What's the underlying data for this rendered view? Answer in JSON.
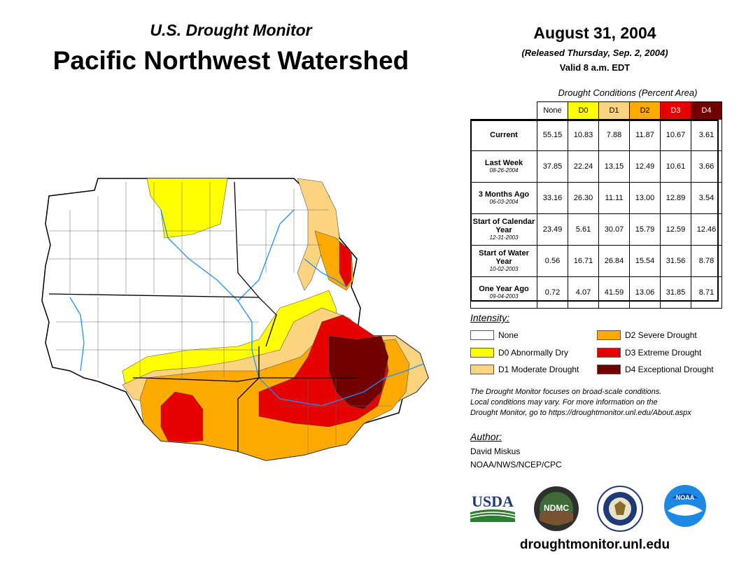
{
  "header": {
    "subtitle": "U.S. Drought Monitor",
    "title": "Pacific Northwest Watershed",
    "date": "August 31, 2004",
    "released": "(Released Thursday, Sep. 2, 2004)",
    "valid": "Valid 8 a.m. EDT"
  },
  "conditions": {
    "title": "Drought Conditions (Percent Area)",
    "columns": [
      {
        "label": "None",
        "color": "#ffffff",
        "text_color": "#000000"
      },
      {
        "label": "D0",
        "color": "#ffff00",
        "text_color": "#000000"
      },
      {
        "label": "D1",
        "color": "#fcd37f",
        "text_color": "#000000"
      },
      {
        "label": "D2",
        "color": "#ffaa00",
        "text_color": "#000000"
      },
      {
        "label": "D3",
        "color": "#e60000",
        "text_color": "#ffffff"
      },
      {
        "label": "D4",
        "color": "#730000",
        "text_color": "#ffffff"
      }
    ],
    "rows": [
      {
        "label": "Current",
        "sublabel": "",
        "values": [
          "55.15",
          "10.83",
          "7.88",
          "11.87",
          "10.67",
          "3.61"
        ]
      },
      {
        "label": "Last Week",
        "sublabel": "08-26-2004",
        "values": [
          "37.85",
          "22.24",
          "13.15",
          "12.49",
          "10.61",
          "3.66"
        ]
      },
      {
        "label": "3 Months Ago",
        "sublabel": "06-03-2004",
        "values": [
          "33.16",
          "26.30",
          "11.11",
          "13.00",
          "12.89",
          "3.54"
        ]
      },
      {
        "label": "Start of Calendar Year",
        "sublabel": "12-31-2003",
        "values": [
          "23.49",
          "5.61",
          "30.07",
          "15.79",
          "12.59",
          "12.46"
        ]
      },
      {
        "label": "Start of Water Year",
        "sublabel": "10-02-2003",
        "values": [
          "0.56",
          "16.71",
          "26.84",
          "15.54",
          "31.56",
          "8.78"
        ]
      },
      {
        "label": "One Year Ago",
        "sublabel": "09-04-2003",
        "values": [
          "0.72",
          "4.07",
          "41.59",
          "13.06",
          "31.85",
          "8.71"
        ]
      }
    ]
  },
  "legend": {
    "heading": "Intensity:",
    "items": [
      {
        "label": "None",
        "color": "#ffffff"
      },
      {
        "label": "D0 Abnormally Dry",
        "color": "#ffff00"
      },
      {
        "label": "D1 Moderate Drought",
        "color": "#fcd37f"
      },
      {
        "label": "D2 Severe Drought",
        "color": "#ffaa00"
      },
      {
        "label": "D3 Extreme Drought",
        "color": "#e60000"
      },
      {
        "label": "D4 Exceptional Drought",
        "color": "#730000"
      }
    ]
  },
  "note": {
    "line1": "The Drought Monitor focuses on broad-scale conditions.",
    "line2": "Local conditions may vary. For more information on the",
    "line3": "Drought Monitor, go to https://droughtmonitor.unl.edu/About.aspx"
  },
  "author": {
    "heading": "Author:",
    "name": "David Miskus",
    "org": "NOAA/NWS/NCEP/CPC"
  },
  "logos": {
    "usda": "USDA",
    "ndmc": "NDMC",
    "noaa": "NOAA"
  },
  "website": "droughtmonitor.unl.edu"
}
